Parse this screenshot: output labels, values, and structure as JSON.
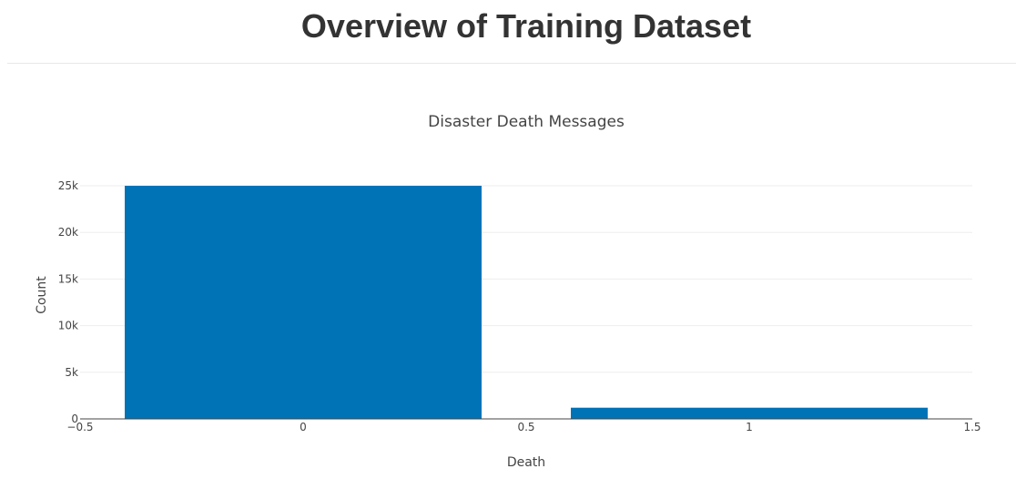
{
  "header": {
    "title": "Overview of Training Dataset"
  },
  "chart_data": {
    "type": "bar",
    "title": "Disaster Death Messages",
    "xlabel": "Death",
    "ylabel": "Count",
    "x": [
      0,
      1
    ],
    "values": [
      25000,
      1200
    ],
    "bar_width": 0.8,
    "xlim": [
      -0.5,
      1.5
    ],
    "ylim": [
      0,
      25000
    ],
    "x_ticks": [
      -0.5,
      0,
      0.5,
      1,
      1.5
    ],
    "x_tick_labels": [
      "−0.5",
      "0",
      "0.5",
      "1",
      "1.5"
    ],
    "y_ticks": [
      0,
      5000,
      10000,
      15000,
      20000,
      25000
    ],
    "y_tick_labels": [
      "0",
      "5k",
      "10k",
      "15k",
      "20k",
      "25k"
    ],
    "grid": true,
    "bar_color": "#0073b7",
    "grid_color": "#eeeeee"
  }
}
